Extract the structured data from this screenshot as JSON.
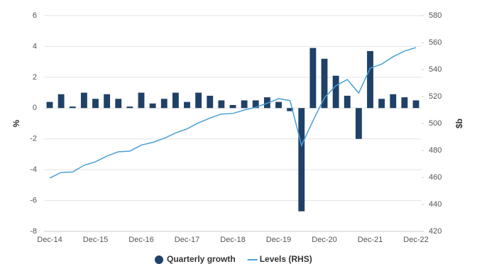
{
  "chart_data": {
    "type": "bar-line",
    "categories": [
      "Dec-14",
      null,
      null,
      null,
      "Dec-15",
      null,
      null,
      null,
      "Dec-16",
      null,
      null,
      null,
      "Dec-17",
      null,
      null,
      null,
      "Dec-18",
      null,
      null,
      null,
      "Dec-19",
      null,
      null,
      null,
      "Dec-20",
      null,
      null,
      null,
      "Dec-21",
      null,
      null,
      null,
      "Dec-22"
    ],
    "series": [
      {
        "name": "Quarterly growth",
        "type": "bar",
        "color": "#1f4168",
        "values": [
          0.4,
          0.9,
          0.1,
          1.0,
          0.6,
          0.9,
          0.6,
          0.1,
          1.0,
          0.3,
          0.6,
          1.0,
          0.4,
          1.0,
          0.8,
          0.5,
          0.2,
          0.5,
          0.5,
          0.7,
          0.4,
          -0.2,
          -6.7,
          3.9,
          3.2,
          2.1,
          0.8,
          -2.0,
          3.7,
          0.6,
          0.9,
          0.7,
          0.5
        ]
      },
      {
        "name": "Levels (RHS)",
        "type": "line",
        "axis": "y2",
        "color": "#4a9fd4",
        "values": [
          459.5,
          463.7,
          464,
          469,
          471.6,
          475.8,
          479,
          479.5,
          484,
          486,
          489,
          493,
          496,
          500.5,
          504,
          507,
          507.4,
          510,
          512,
          515,
          518.4,
          517,
          483.7,
          502,
          519,
          528,
          532.6,
          522.6,
          541,
          544,
          549.5,
          553.7,
          556.3
        ]
      }
    ],
    "ylabel": "%",
    "y2label": "$b",
    "ylim": [
      -8,
      6
    ],
    "yticks": [
      -8,
      -6,
      -4,
      -2,
      0,
      2,
      4,
      6
    ],
    "y2lim": [
      420,
      580
    ],
    "y2ticks": [
      420,
      440,
      460,
      480,
      500,
      520,
      540,
      560,
      580
    ],
    "grid": true
  }
}
